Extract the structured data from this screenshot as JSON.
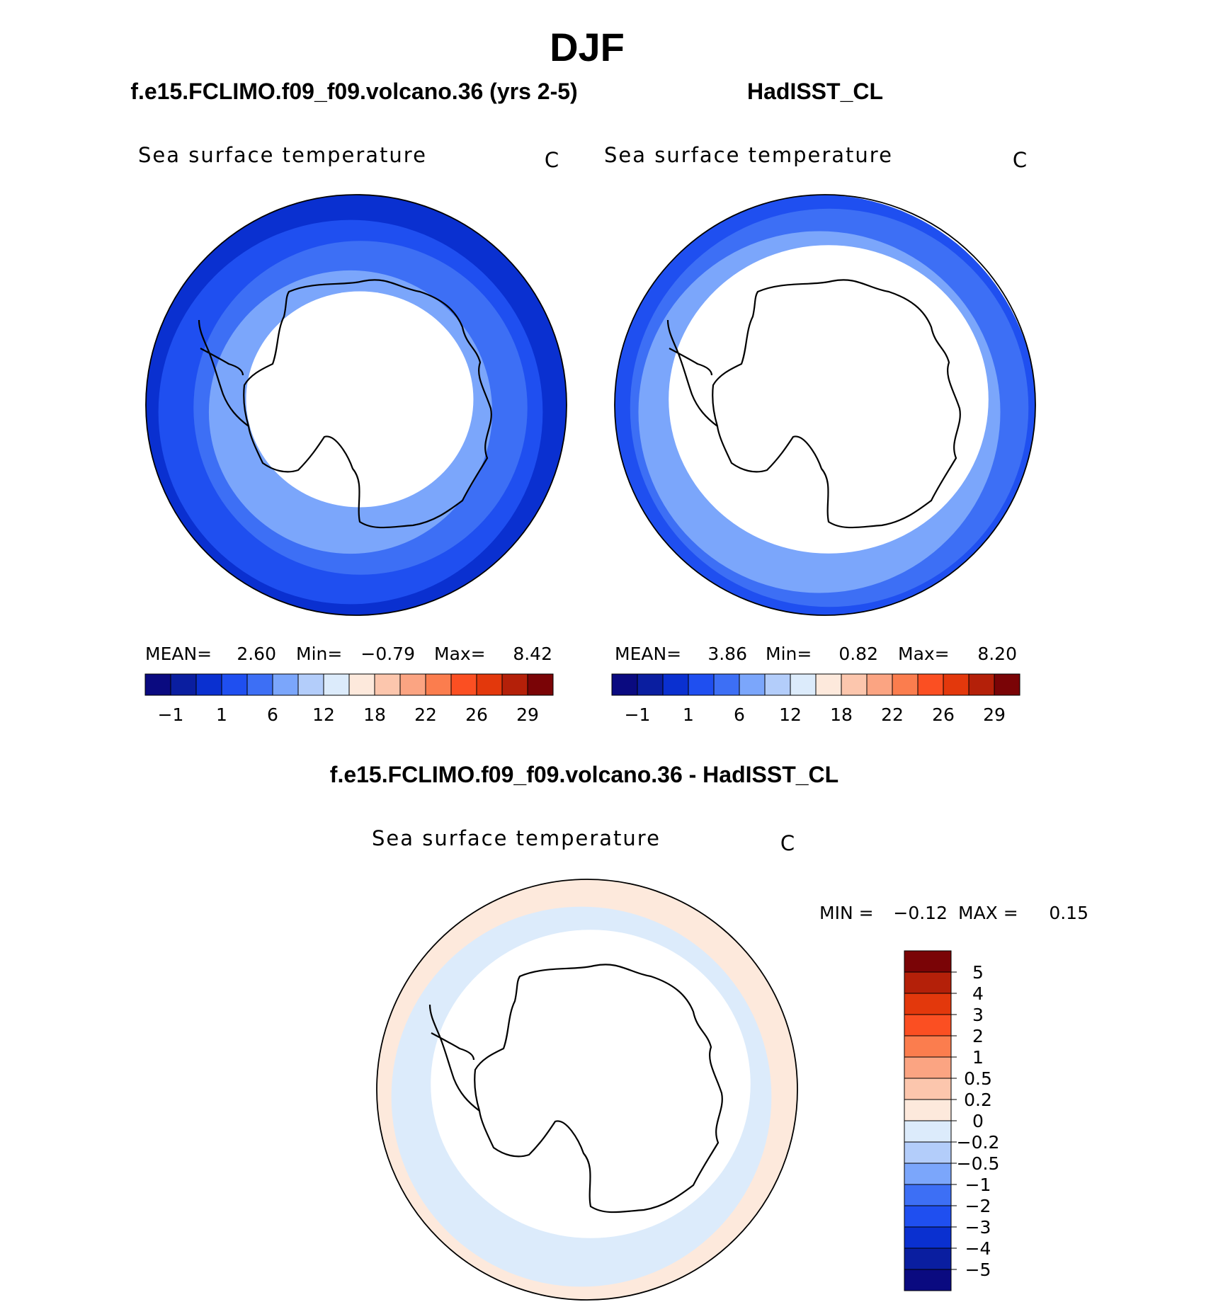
{
  "title": "DJF",
  "panels": [
    {
      "heading": "f.e15.FCLIMO.f09_f09.volcano.36 (yrs 2-5)",
      "plot_title": "Sea surface temperature",
      "units": "C",
      "stats": {
        "mean_label": "MEAN=",
        "mean": "2.60",
        "min_label": "Min=",
        "min": "−0.79",
        "max_label": "Max=",
        "max": "8.42"
      },
      "fill": {
        "icefree_start_ratio": 0.52,
        "zone_colors": [
          "#0a30d0",
          "#1f4ff0",
          "#3d6ff5",
          "#7ba6fb"
        ]
      }
    },
    {
      "heading": "HadISST_CL",
      "plot_title": "Sea surface temperature",
      "units": "C",
      "stats": {
        "mean_label": "MEAN=",
        "mean": "3.86",
        "min_label": "Min=",
        "min": "0.82",
        "max_label": "Max=",
        "max": "8.20"
      },
      "fill": {
        "icefree_start_ratio": 0.74,
        "zone_colors": [
          "#1f4ff0",
          "#3d6ff5",
          "#7ba6fb"
        ]
      }
    }
  ],
  "sst_colorbar": {
    "colors": [
      "#0a0a80",
      "#0a1ea0",
      "#0a30d0",
      "#1f4ff0",
      "#3d6ff5",
      "#7ba6fb",
      "#b3cdfa",
      "#dcebfb",
      "#fde9dc",
      "#fcc6ad",
      "#fba482",
      "#fb7d4e",
      "#fb4f22",
      "#e3380c",
      "#b42009",
      "#7a0406"
    ],
    "tick_labels": [
      "−1",
      "1",
      "6",
      "12",
      "18",
      "22",
      "26",
      "29"
    ]
  },
  "difference": {
    "heading": "f.e15.FCLIMO.f09_f09.volcano.36 - HadISST_CL",
    "plot_title": "Sea surface temperature",
    "units": "C",
    "stats": {
      "min_label": "MIN =",
      "min": "−0.12",
      "max_label": "MAX =",
      "max": "0.15"
    },
    "colorbar": {
      "colors": [
        "#7a0406",
        "#b42009",
        "#e3380c",
        "#fb4f22",
        "#fb7d4e",
        "#fba482",
        "#fcc6ad",
        "#fde9dc",
        "#dcebfb",
        "#b3cdfa",
        "#7ba6fb",
        "#3d6ff5",
        "#1f4ff0",
        "#0a30d0",
        "#0a1ea0",
        "#0a0a80"
      ],
      "tick_labels": [
        "5",
        "4",
        "3",
        "2",
        "1",
        "0.5",
        "0.2",
        "0",
        "−0.2",
        "−0.5",
        "−1",
        "−2",
        "−3",
        "−4",
        "−5"
      ]
    },
    "fill": {
      "icefree_start_ratio": 0.74,
      "zone_colors": [
        "#fde9dc",
        "#dcebfb"
      ]
    }
  },
  "coastline_color": "#000000"
}
